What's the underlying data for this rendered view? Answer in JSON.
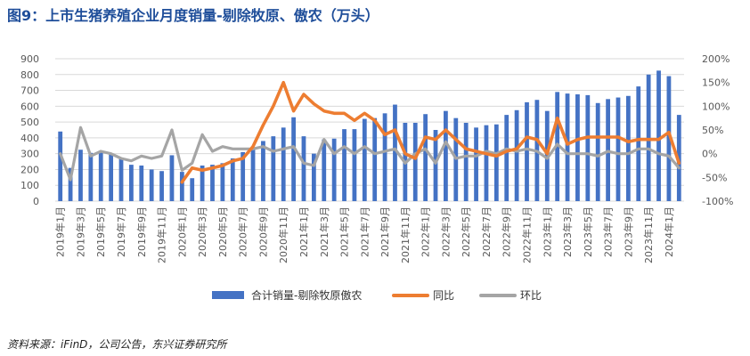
{
  "title": "图9：上市生猪养殖企业月度销量-剔除牧原、傲农（万头）",
  "source": "资料来源：iFinD，公司公告，东兴证券研究所",
  "colors": {
    "bar": "#4472c4",
    "yoy": "#ed7d31",
    "mom": "#a5a5a5"
  },
  "chart_data": {
    "type": "bar",
    "categories": [
      "2019年1月",
      "2019年2月",
      "2019年3月",
      "2019年4月",
      "2019年5月",
      "2019年6月",
      "2019年7月",
      "2019年8月",
      "2019年9月",
      "2019年10月",
      "2019年11月",
      "2019年12月",
      "2020年1月",
      "2020年2月",
      "2020年3月",
      "2020年4月",
      "2020年5月",
      "2020年6月",
      "2020年7月",
      "2020年8月",
      "2020年9月",
      "2020年10月",
      "2020年11月",
      "2020年12月",
      "2021年1月",
      "2021年2月",
      "2021年3月",
      "2021年4月",
      "2021年5月",
      "2021年6月",
      "2021年7月",
      "2021年8月",
      "2021年9月",
      "2021年10月",
      "2021年11月",
      "2021年12月",
      "2022年1月",
      "2022年2月",
      "2022年3月",
      "2022年4月",
      "2022年5月",
      "2022年6月",
      "2022年7月",
      "2022年8月",
      "2022年9月",
      "2022年10月",
      "2022年11月",
      "2022年12月",
      "2023年1月",
      "2023年2月",
      "2023年3月",
      "2023年4月",
      "2023年5月",
      "2023年6月",
      "2023年7月",
      "2023年8月",
      "2023年9月",
      "2023年10月",
      "2023年11月",
      "2023年12月",
      "2024年1月",
      "2024年2月"
    ],
    "xtick_labels": [
      "2019年1月",
      "2019年3月",
      "2019年5月",
      "2019年7月",
      "2019年9月",
      "2019年11月",
      "2020年1月",
      "2020年3月",
      "2020年5月",
      "2020年7月",
      "2020年9月",
      "2020年11月",
      "2021年1月",
      "2021年3月",
      "2021年5月",
      "2021年7月",
      "2021年9月",
      "2021年11月",
      "2022年1月",
      "2022年3月",
      "2022年5月",
      "2022年7月",
      "2022年9月",
      "2022年11月",
      "2023年1月",
      "2023年3月",
      "2023年5月",
      "2023年7月",
      "2023年9月",
      "2023年11月",
      "2024年1月"
    ],
    "series": [
      {
        "name": "合计销量-剔除牧原傲农",
        "type": "bar",
        "axis": "left",
        "values": [
          440,
          210,
          325,
          305,
          310,
          300,
          270,
          230,
          225,
          200,
          190,
          290,
          185,
          145,
          225,
          230,
          240,
          270,
          310,
          330,
          380,
          410,
          465,
          530,
          410,
          300,
          390,
          395,
          455,
          455,
          520,
          525,
          555,
          610,
          495,
          495,
          550,
          450,
          570,
          525,
          495,
          465,
          480,
          485,
          545,
          575,
          625,
          640,
          570,
          690,
          680,
          675,
          670,
          620,
          645,
          655,
          665,
          725,
          800,
          825,
          790,
          545
        ]
      },
      {
        "name": "同比",
        "type": "line",
        "axis": "right",
        "values": [
          null,
          null,
          null,
          null,
          null,
          null,
          null,
          null,
          null,
          null,
          null,
          null,
          -60,
          -30,
          -35,
          -30,
          -25,
          -15,
          -10,
          15,
          60,
          100,
          150,
          90,
          125,
          105,
          90,
          85,
          85,
          70,
          85,
          70,
          40,
          50,
          0,
          -10,
          35,
          30,
          50,
          30,
          10,
          5,
          0,
          -5,
          5,
          10,
          35,
          30,
          0,
          75,
          20,
          30,
          35,
          35,
          35,
          35,
          25,
          30,
          30,
          30,
          45,
          -20
        ]
      },
      {
        "name": "环比",
        "type": "line",
        "axis": "right",
        "values": [
          0,
          -55,
          55,
          -5,
          5,
          0,
          -10,
          -15,
          -5,
          -10,
          -5,
          50,
          -35,
          -20,
          40,
          5,
          15,
          10,
          10,
          10,
          15,
          5,
          10,
          15,
          -20,
          -25,
          30,
          0,
          15,
          0,
          15,
          0,
          5,
          10,
          -20,
          0,
          10,
          -20,
          25,
          -10,
          -5,
          -5,
          5,
          0,
          10,
          5,
          10,
          5,
          -10,
          20,
          0,
          0,
          0,
          -5,
          5,
          0,
          0,
          10,
          10,
          0,
          -5,
          -30
        ]
      }
    ],
    "y_left": {
      "min": 0,
      "max": 900,
      "step": 100
    },
    "y_right": {
      "min": -100,
      "max": 200,
      "step": 50,
      "format": "percent"
    },
    "legend": {
      "position": "bottom",
      "labels": [
        "合计销量-剔除牧原傲农",
        "同比",
        "环比"
      ]
    }
  }
}
